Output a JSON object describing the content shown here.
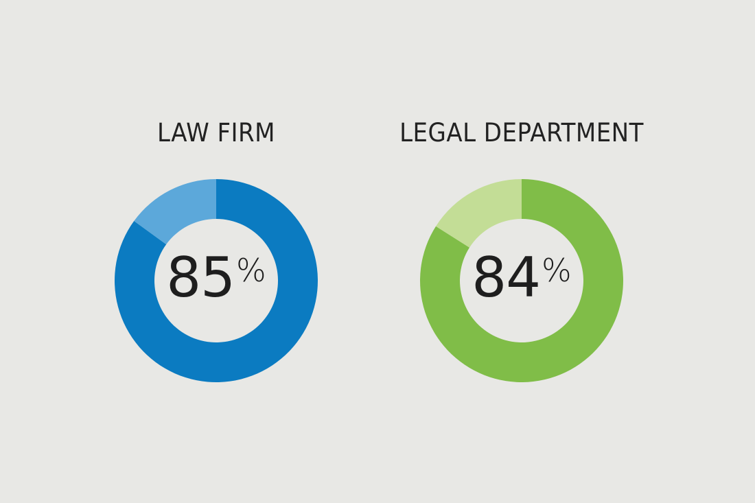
{
  "chart_data": [
    {
      "type": "pie",
      "title": "LAW FIRM",
      "center_label": {
        "value": "85",
        "unit": "%"
      },
      "slices": [
        {
          "name": "",
          "value": 85,
          "color": "#0b7bc1"
        },
        {
          "name": "",
          "value": 15,
          "color": "#5ca8da"
        }
      ]
    },
    {
      "type": "pie",
      "title": "LEGAL DEPARTMENT",
      "center_label": {
        "value": "84",
        "unit": "%"
      },
      "slices": [
        {
          "name": "",
          "value": 84,
          "color": "#80bd48"
        },
        {
          "name": "",
          "value": 16,
          "color": "#c3dd96"
        }
      ]
    }
  ]
}
